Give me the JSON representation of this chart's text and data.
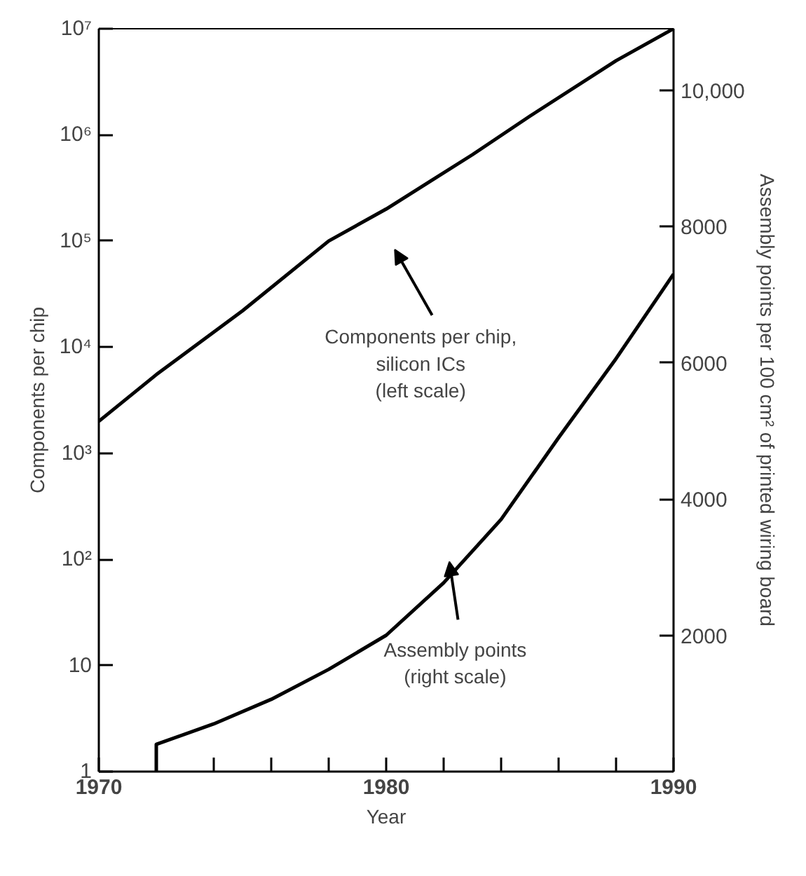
{
  "chart_data": {
    "type": "line",
    "xlabel": "Year",
    "ylabel": "Components per chip",
    "y2label": "Assembly points per 100 cm² of printed wiring board",
    "xlim": [
      1970,
      1990
    ],
    "xticks": [
      1970,
      {
        "value": 1972,
        "label": null
      },
      {
        "value": 1974,
        "label": null
      },
      {
        "value": 1976,
        "label": null
      },
      {
        "value": 1978,
        "label": null
      },
      1980,
      {
        "value": 1982,
        "label": null
      },
      {
        "value": 1984,
        "label": null
      },
      {
        "value": 1986,
        "label": null
      },
      {
        "value": 1988,
        "label": null
      },
      1990
    ],
    "log": "y",
    "ylim": [
      1,
      10000000
    ],
    "yticks": [
      1,
      10,
      {
        "value": 100,
        "label": "10²"
      },
      {
        "value": 1000,
        "label": "10³"
      },
      {
        "value": 10000,
        "label": "10⁴"
      },
      {
        "value": 100000,
        "label": "10⁵"
      },
      {
        "value": 1000000,
        "label": "10⁶"
      },
      {
        "value": 10000000,
        "label": "10⁷"
      }
    ],
    "y2lim": [
      0,
      10900
    ],
    "y2ticks": [
      2000,
      4000,
      6000,
      8000,
      {
        "value": 10000,
        "label": "10,000"
      }
    ],
    "grid": false,
    "marker": "none",
    "line_style": "solid",
    "series": [
      {
        "color": "#000000",
        "x": [
          1970,
          1972,
          1975,
          1978,
          1980,
          1983,
          1985,
          1988,
          1990
        ],
        "values": [
          2000,
          5500,
          22000,
          100000,
          200000,
          650000,
          1500000,
          5000000,
          10000000
        ]
      },
      {
        "color": "#000000",
        "axis": "y2",
        "x": [
          1972,
          1972,
          1974,
          1976,
          1978,
          1980,
          1982,
          1984,
          1986,
          1988,
          1990
        ],
        "values": [
          0,
          400,
          700,
          1060,
          1500,
          2000,
          2770,
          3700,
          4900,
          6060,
          7300
        ]
      }
    ],
    "annotations": [
      "Components per chip,\nsilicon ICs\n(left scale)",
      "Assembly points\n(right scale)"
    ]
  }
}
